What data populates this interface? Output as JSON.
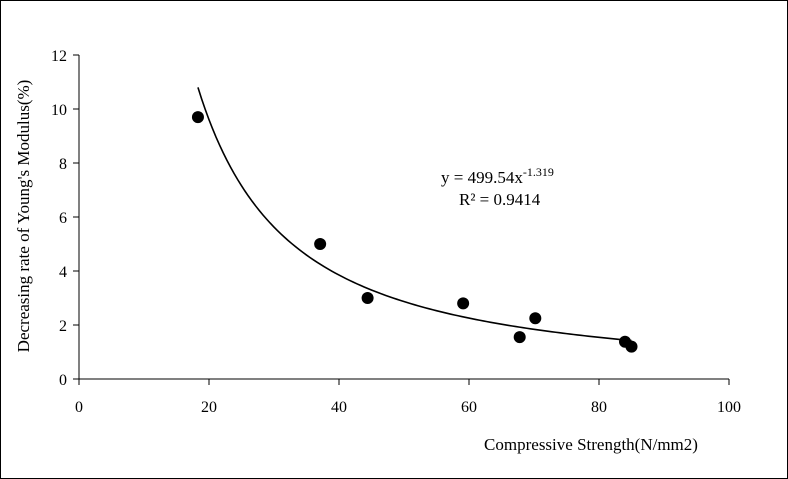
{
  "chart_data": {
    "type": "scatter",
    "title": "",
    "xlabel": "Compressive Strength(N/mm2)",
    "ylabel": "Decreasing rate of Young's Modulus(%)",
    "xlim": [
      0,
      100
    ],
    "ylim": [
      0,
      12
    ],
    "x_ticks": [
      0,
      20,
      40,
      60,
      80,
      100
    ],
    "y_ticks": [
      0,
      2,
      4,
      6,
      8,
      10,
      12
    ],
    "grid": false,
    "legend": "none",
    "points": [
      {
        "x": 18.3,
        "y": 9.7
      },
      {
        "x": 37.1,
        "y": 5.0
      },
      {
        "x": 44.4,
        "y": 3.0
      },
      {
        "x": 59.1,
        "y": 2.8
      },
      {
        "x": 67.8,
        "y": 1.55
      },
      {
        "x": 70.2,
        "y": 2.25
      },
      {
        "x": 84.0,
        "y": 1.38
      },
      {
        "x": 85.0,
        "y": 1.2
      }
    ],
    "trendline": {
      "type": "power",
      "a": 499.54,
      "b": -1.319,
      "x_range": [
        18.3,
        85.0
      ]
    },
    "annotation": {
      "equation_base": "y = 499.54x",
      "equation_exponent": "-1.319",
      "r_squared": "R² = 0.9414"
    },
    "colors": {
      "marker": "#000000",
      "line": "#000000",
      "axis": "#000000"
    }
  }
}
